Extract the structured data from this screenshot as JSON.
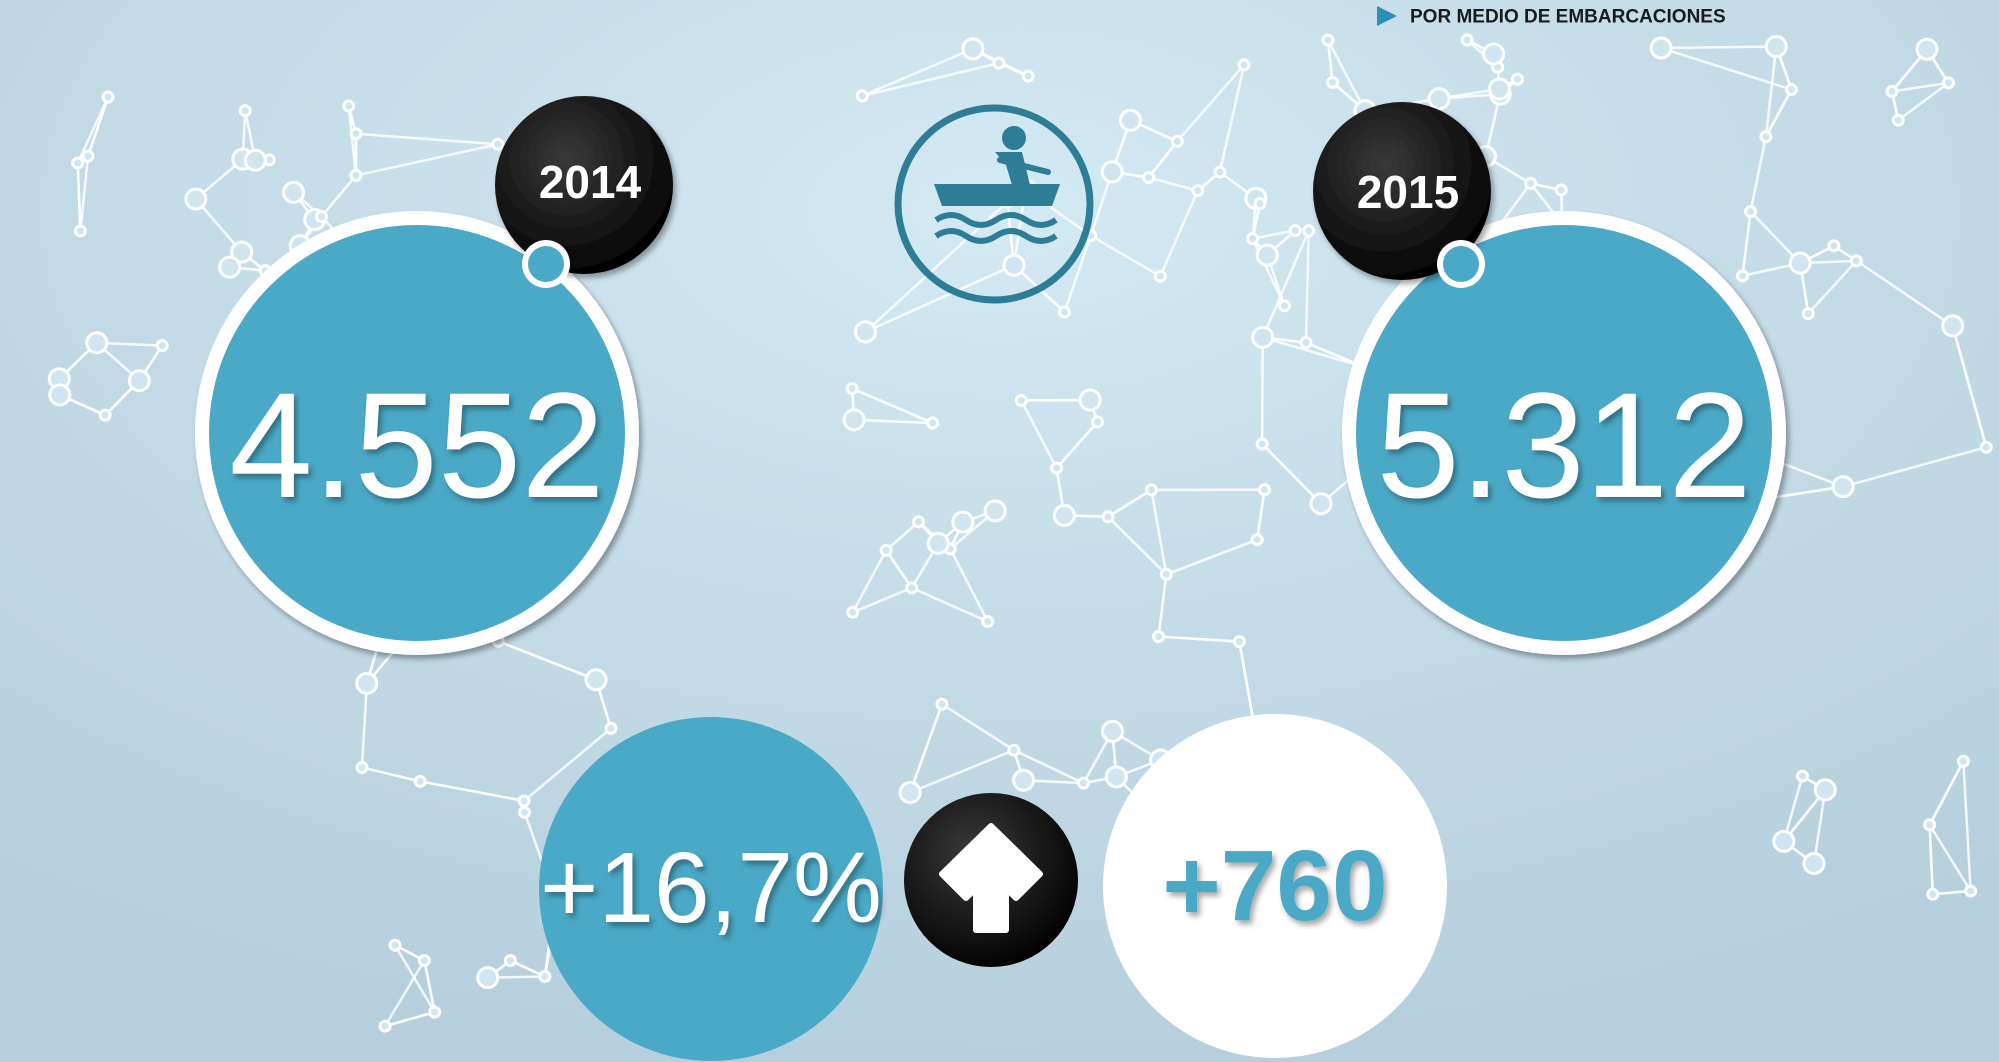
{
  "header": {
    "subtitle": "POR MEDIO DE EMBARCACIONES"
  },
  "years": [
    {
      "year": "2014",
      "value": "4.552"
    },
    {
      "year": "2015",
      "value": "5.312"
    }
  ],
  "change": {
    "percent": "+16,7%",
    "absolute": "+760"
  }
}
